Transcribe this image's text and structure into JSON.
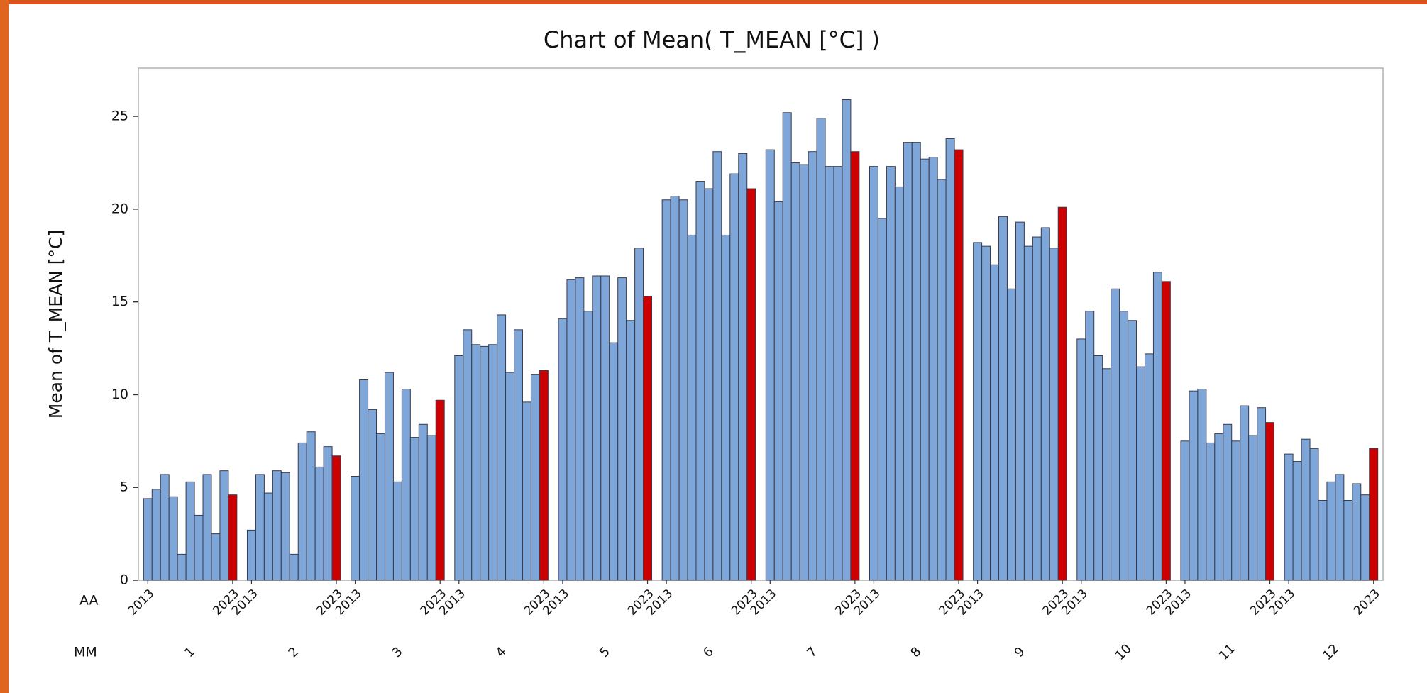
{
  "chart_data": {
    "type": "bar",
    "title": "Chart of Mean( T_MEAN [°C] )",
    "y_label": "Mean of T_MEAN [°C]",
    "row_labels": [
      "AA",
      "MM"
    ],
    "groups": [
      "1",
      "2",
      "3",
      "4",
      "5",
      "6",
      "7",
      "8",
      "9",
      "10",
      "11",
      "12"
    ],
    "categories": [
      "2013",
      null,
      null,
      null,
      null,
      null,
      null,
      null,
      null,
      null,
      "2023"
    ],
    "colors": [
      "#7ea6d9",
      "#7ea6d9",
      "#7ea6d9",
      "#7ea6d9",
      "#7ea6d9",
      "#7ea6d9",
      "#7ea6d9",
      "#7ea6d9",
      "#7ea6d9",
      "#7ea6d9",
      "#cc0000"
    ],
    "values": [
      [
        4.4,
        4.9,
        5.7,
        4.5,
        1.4,
        5.3,
        3.5,
        5.7,
        2.5,
        5.9,
        4.6
      ],
      [
        2.7,
        5.7,
        4.7,
        5.9,
        5.8,
        1.4,
        7.4,
        8.0,
        6.1,
        7.2,
        6.7
      ],
      [
        5.6,
        10.8,
        9.2,
        7.9,
        11.2,
        5.3,
        10.3,
        7.7,
        8.4,
        7.8,
        9.7
      ],
      [
        12.1,
        13.5,
        12.7,
        12.6,
        12.7,
        14.3,
        11.2,
        13.5,
        9.6,
        11.1,
        11.3
      ],
      [
        14.1,
        16.2,
        16.3,
        14.5,
        16.4,
        16.4,
        12.8,
        16.3,
        14.0,
        17.9,
        15.3
      ],
      [
        20.5,
        20.7,
        20.5,
        18.6,
        21.5,
        21.1,
        23.1,
        18.6,
        21.9,
        23.0,
        21.1
      ],
      [
        23.2,
        20.4,
        25.2,
        22.5,
        22.4,
        23.1,
        24.9,
        22.3,
        22.3,
        25.9,
        23.1
      ],
      [
        22.3,
        19.5,
        22.3,
        21.2,
        23.6,
        23.6,
        22.7,
        22.8,
        21.6,
        23.8,
        23.2
      ],
      [
        18.2,
        18.0,
        17.0,
        19.6,
        15.7,
        19.3,
        18.0,
        18.5,
        19.0,
        17.9,
        20.1
      ],
      [
        13.0,
        14.5,
        12.1,
        11.4,
        15.7,
        14.5,
        14.0,
        11.5,
        12.2,
        16.6,
        16.1
      ],
      [
        7.5,
        10.2,
        10.3,
        7.4,
        7.9,
        8.4,
        7.5,
        9.4,
        7.8,
        9.3,
        8.5
      ],
      [
        6.8,
        6.4,
        7.6,
        7.1,
        4.3,
        5.3,
        5.7,
        4.3,
        5.2,
        4.6,
        7.1
      ]
    ],
    "ylim": [
      0,
      27.6
    ],
    "yticks": [
      0,
      5,
      10,
      15,
      20,
      25
    ]
  }
}
